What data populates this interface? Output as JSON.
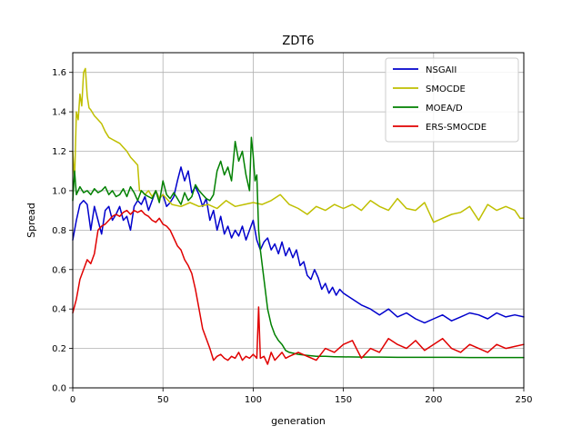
{
  "chart_data": {
    "type": "line",
    "title": "ZDT6",
    "xlabel": "generation",
    "ylabel": "Spread",
    "xlim": [
      0,
      250
    ],
    "ylim": [
      0.0,
      1.7
    ],
    "grid": true,
    "legend_position": "top-right",
    "x_ticks": [
      0,
      50,
      100,
      150,
      200,
      250
    ],
    "x_tick_labels": [
      "0",
      "50",
      "100",
      "150",
      "200",
      "250"
    ],
    "y_ticks": [
      0.0,
      0.2,
      0.4,
      0.6,
      0.8,
      1.0,
      1.2,
      1.4,
      1.6
    ],
    "y_tick_labels": [
      "0.0",
      "0.2",
      "0.4",
      "0.6",
      "0.8",
      "1.0",
      "1.2",
      "1.4",
      "1.6"
    ],
    "series": [
      {
        "name": "NSGAII",
        "color": "#0000cc",
        "x": [
          0,
          2,
          4,
          6,
          8,
          10,
          12,
          14,
          16,
          18,
          20,
          22,
          24,
          26,
          28,
          30,
          32,
          34,
          36,
          38,
          40,
          42,
          44,
          46,
          48,
          50,
          52,
          54,
          56,
          58,
          60,
          62,
          64,
          66,
          68,
          70,
          72,
          74,
          76,
          78,
          80,
          82,
          84,
          86,
          88,
          90,
          92,
          94,
          96,
          98,
          100,
          102,
          104,
          106,
          108,
          110,
          112,
          114,
          116,
          118,
          120,
          122,
          124,
          126,
          128,
          130,
          132,
          134,
          136,
          138,
          140,
          142,
          144,
          146,
          148,
          150,
          155,
          160,
          165,
          170,
          175,
          180,
          185,
          190,
          195,
          200,
          205,
          210,
          215,
          220,
          225,
          230,
          235,
          240,
          245,
          250
        ],
        "y": [
          0.75,
          0.85,
          0.93,
          0.95,
          0.93,
          0.8,
          0.92,
          0.85,
          0.78,
          0.9,
          0.92,
          0.85,
          0.88,
          0.92,
          0.85,
          0.87,
          0.8,
          0.92,
          0.95,
          0.93,
          0.97,
          0.9,
          0.95,
          1.0,
          0.96,
          0.98,
          0.92,
          0.94,
          0.97,
          1.05,
          1.12,
          1.05,
          1.1,
          0.99,
          1.02,
          0.98,
          0.92,
          0.96,
          0.85,
          0.9,
          0.8,
          0.87,
          0.78,
          0.82,
          0.76,
          0.8,
          0.77,
          0.82,
          0.75,
          0.8,
          0.85,
          0.75,
          0.7,
          0.74,
          0.76,
          0.7,
          0.73,
          0.68,
          0.74,
          0.67,
          0.71,
          0.66,
          0.7,
          0.62,
          0.64,
          0.57,
          0.55,
          0.6,
          0.56,
          0.5,
          0.53,
          0.48,
          0.51,
          0.47,
          0.5,
          0.48,
          0.45,
          0.42,
          0.4,
          0.37,
          0.4,
          0.36,
          0.38,
          0.35,
          0.33,
          0.35,
          0.37,
          0.34,
          0.36,
          0.38,
          0.37,
          0.35,
          0.38,
          0.36,
          0.37,
          0.36
        ]
      },
      {
        "name": "SMOCDE",
        "color": "#bfbf00",
        "x": [
          0,
          1,
          2,
          3,
          4,
          5,
          6,
          7,
          8,
          9,
          10,
          12,
          14,
          16,
          18,
          20,
          22,
          24,
          26,
          28,
          30,
          32,
          34,
          36,
          37,
          38,
          40,
          42,
          44,
          46,
          48,
          50,
          55,
          60,
          65,
          70,
          75,
          80,
          85,
          90,
          95,
          100,
          105,
          110,
          115,
          120,
          125,
          130,
          135,
          140,
          145,
          150,
          155,
          160,
          165,
          170,
          175,
          180,
          185,
          190,
          195,
          200,
          205,
          210,
          215,
          220,
          225,
          230,
          235,
          240,
          245,
          248,
          250
        ],
        "y": [
          1.2,
          1.05,
          1.4,
          1.36,
          1.49,
          1.43,
          1.6,
          1.62,
          1.48,
          1.42,
          1.41,
          1.38,
          1.36,
          1.34,
          1.3,
          1.27,
          1.26,
          1.25,
          1.24,
          1.22,
          1.2,
          1.17,
          1.15,
          1.13,
          1.0,
          1.0,
          0.98,
          1.0,
          0.97,
          1.0,
          0.96,
          0.98,
          0.93,
          0.92,
          0.94,
          0.92,
          0.93,
          0.91,
          0.95,
          0.92,
          0.93,
          0.94,
          0.93,
          0.95,
          0.98,
          0.93,
          0.91,
          0.88,
          0.92,
          0.9,
          0.93,
          0.91,
          0.93,
          0.9,
          0.95,
          0.92,
          0.9,
          0.96,
          0.91,
          0.9,
          0.94,
          0.84,
          0.86,
          0.88,
          0.89,
          0.92,
          0.85,
          0.93,
          0.9,
          0.92,
          0.9,
          0.86,
          0.86
        ]
      },
      {
        "name": "MOEA/D",
        "color": "#008000",
        "x": [
          0,
          1,
          2,
          4,
          6,
          8,
          10,
          12,
          14,
          16,
          18,
          20,
          22,
          24,
          26,
          28,
          30,
          32,
          34,
          36,
          38,
          40,
          42,
          44,
          46,
          48,
          50,
          52,
          54,
          56,
          58,
          60,
          62,
          64,
          66,
          68,
          70,
          72,
          74,
          76,
          78,
          80,
          82,
          84,
          86,
          88,
          90,
          92,
          94,
          96,
          98,
          99,
          100,
          101,
          102,
          103,
          104,
          106,
          108,
          110,
          112,
          114,
          116,
          118,
          120,
          125,
          130,
          135,
          140,
          145,
          150,
          160,
          170,
          180,
          190,
          200,
          210,
          220,
          230,
          240,
          250
        ],
        "y": [
          0.95,
          1.1,
          0.98,
          1.02,
          0.99,
          1.0,
          0.98,
          1.01,
          0.99,
          1.0,
          1.02,
          0.98,
          1.0,
          0.97,
          0.98,
          1.01,
          0.97,
          1.02,
          0.99,
          0.95,
          1.0,
          0.98,
          0.97,
          0.96,
          1.0,
          0.94,
          1.05,
          0.98,
          0.96,
          0.99,
          0.96,
          0.93,
          0.99,
          0.95,
          0.97,
          1.03,
          1.0,
          0.98,
          0.96,
          0.95,
          0.98,
          1.1,
          1.15,
          1.08,
          1.12,
          1.05,
          1.25,
          1.15,
          1.2,
          1.08,
          1.0,
          1.27,
          1.18,
          1.05,
          1.08,
          0.8,
          0.7,
          0.55,
          0.4,
          0.32,
          0.27,
          0.24,
          0.22,
          0.19,
          0.18,
          0.17,
          0.165,
          0.16,
          0.16,
          0.158,
          0.157,
          0.156,
          0.156,
          0.155,
          0.155,
          0.155,
          0.155,
          0.154,
          0.154,
          0.154,
          0.154
        ]
      },
      {
        "name": "ERS-SMOCDE",
        "color": "#e00000",
        "x": [
          0,
          2,
          4,
          6,
          8,
          10,
          12,
          14,
          16,
          18,
          20,
          22,
          24,
          26,
          28,
          30,
          32,
          34,
          36,
          38,
          40,
          42,
          44,
          46,
          48,
          50,
          52,
          54,
          56,
          58,
          60,
          62,
          64,
          66,
          68,
          70,
          72,
          74,
          76,
          78,
          80,
          82,
          84,
          86,
          88,
          90,
          92,
          94,
          96,
          98,
          100,
          102,
          103,
          104,
          106,
          108,
          110,
          112,
          114,
          116,
          118,
          120,
          125,
          130,
          135,
          140,
          145,
          150,
          155,
          160,
          165,
          170,
          175,
          180,
          185,
          190,
          195,
          200,
          205,
          210,
          215,
          220,
          225,
          230,
          235,
          240,
          245,
          250
        ],
        "y": [
          0.38,
          0.45,
          0.55,
          0.6,
          0.65,
          0.63,
          0.68,
          0.8,
          0.82,
          0.83,
          0.85,
          0.87,
          0.88,
          0.87,
          0.89,
          0.9,
          0.88,
          0.9,
          0.89,
          0.9,
          0.88,
          0.87,
          0.85,
          0.84,
          0.86,
          0.83,
          0.82,
          0.8,
          0.76,
          0.72,
          0.7,
          0.65,
          0.62,
          0.58,
          0.5,
          0.4,
          0.3,
          0.25,
          0.2,
          0.14,
          0.16,
          0.17,
          0.15,
          0.14,
          0.16,
          0.15,
          0.18,
          0.14,
          0.16,
          0.15,
          0.17,
          0.15,
          0.41,
          0.15,
          0.16,
          0.12,
          0.18,
          0.14,
          0.16,
          0.18,
          0.15,
          0.16,
          0.18,
          0.16,
          0.14,
          0.2,
          0.18,
          0.22,
          0.24,
          0.15,
          0.2,
          0.18,
          0.25,
          0.22,
          0.2,
          0.24,
          0.19,
          0.22,
          0.25,
          0.2,
          0.18,
          0.22,
          0.2,
          0.18,
          0.22,
          0.2,
          0.21,
          0.22
        ]
      }
    ]
  }
}
